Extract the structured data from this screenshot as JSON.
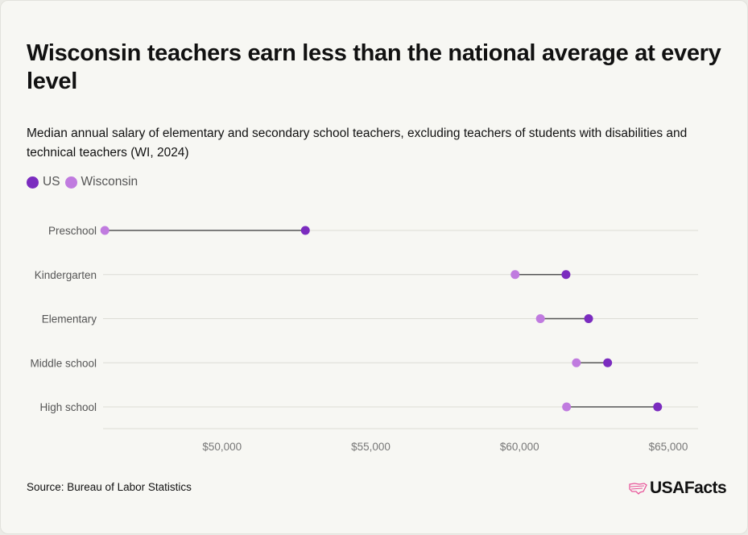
{
  "title": "Wisconsin teachers earn less than the national average at every level",
  "subtitle": "Median annual salary of elementary and secondary school teachers, excluding teachers of students with disabilities and technical teachers (WI, 2024)",
  "source": "Source: Bureau of Labor Statistics",
  "logo_text": "USAFacts",
  "colors": {
    "US": "#7b2cbf",
    "Wisconsin": "#c07bdf",
    "connector": "#555555",
    "grid": "#dcdcd6",
    "brand": "#e8559a"
  },
  "chart_data": {
    "type": "dumbbell",
    "title": "Wisconsin teachers earn less than the national average at every level",
    "legend_position": "top-left",
    "grid": "horizontal",
    "categories": [
      "Preschool",
      "Kindergarten",
      "Elementary",
      "Middle school",
      "High school"
    ],
    "series": [
      {
        "name": "US",
        "values": [
          52800,
          61560,
          62320,
          62960,
          64640
        ]
      },
      {
        "name": "Wisconsin",
        "values": [
          46060,
          59850,
          60700,
          61910,
          61580
        ]
      }
    ],
    "xlim": [
      46000,
      66000
    ],
    "xticks": [
      50000,
      55000,
      60000,
      65000
    ],
    "xtick_labels": [
      "$50,000",
      "$55,000",
      "$60,000",
      "$65,000"
    ]
  }
}
